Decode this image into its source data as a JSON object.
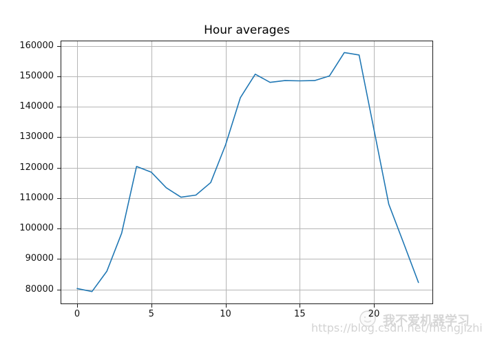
{
  "title": "Hour averages",
  "watermark": {
    "brand": "我不爱机器学习",
    "url": "https://blog.csdn.net/mengjizhiyou",
    "icon": "cartoon-avatar-icon"
  },
  "colors": {
    "background": "#ffffff",
    "line": "#1f77b4",
    "grid": "#b5b5b5",
    "spine": "#1a1a1a",
    "tick_text": "#111111",
    "title_text": "#000000",
    "watermark_text": "#d6d6d6"
  },
  "chart_data": {
    "type": "line",
    "title": "Hour averages",
    "xlabel": "",
    "ylabel": "",
    "x": [
      0,
      1,
      2,
      3,
      4,
      5,
      6,
      7,
      8,
      9,
      10,
      11,
      12,
      13,
      14,
      15,
      16,
      17,
      18,
      19,
      20,
      21,
      22,
      23
    ],
    "values": [
      80300,
      79300,
      86000,
      98500,
      120400,
      118500,
      113400,
      110300,
      111000,
      115100,
      127500,
      143000,
      150700,
      148000,
      148600,
      148500,
      148600,
      150100,
      157800,
      157000,
      132500,
      108000,
      95200,
      82300
    ],
    "xlim": [
      -1.07,
      23.94
    ],
    "ylim": [
      75400,
      161500
    ],
    "xticks": [
      0,
      5,
      10,
      15,
      20
    ],
    "yticks": [
      80000,
      90000,
      100000,
      110000,
      120000,
      130000,
      140000,
      150000,
      160000
    ],
    "grid": true,
    "legend": "none",
    "line_width": 1.6
  }
}
